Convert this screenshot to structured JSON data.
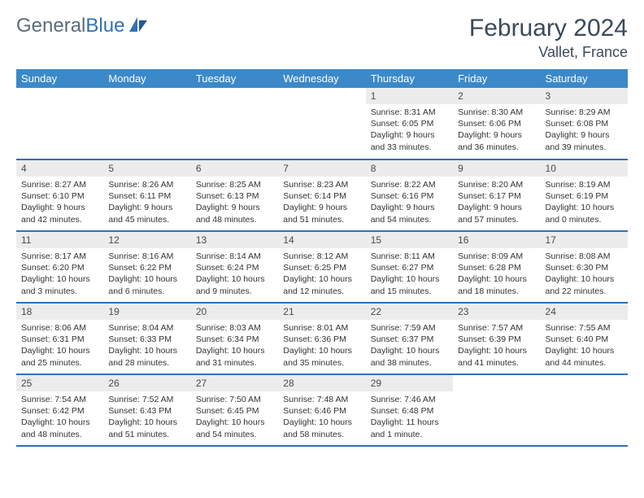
{
  "logo": {
    "text_part1": "General",
    "text_part2": "Blue"
  },
  "title": "February 2024",
  "location": "Vallet, France",
  "colors": {
    "header_bg": "#3b89c9",
    "header_fg": "#ffffff",
    "rule": "#2f71b8",
    "daynum_bg": "#ececec",
    "text": "#333333",
    "title_color": "#3a4a5a"
  },
  "weekdays": [
    "Sunday",
    "Monday",
    "Tuesday",
    "Wednesday",
    "Thursday",
    "Friday",
    "Saturday"
  ],
  "weeks": [
    [
      null,
      null,
      null,
      null,
      {
        "n": "1",
        "sunrise": "8:31 AM",
        "sunset": "6:05 PM",
        "daylight": "9 hours and 33 minutes."
      },
      {
        "n": "2",
        "sunrise": "8:30 AM",
        "sunset": "6:06 PM",
        "daylight": "9 hours and 36 minutes."
      },
      {
        "n": "3",
        "sunrise": "8:29 AM",
        "sunset": "6:08 PM",
        "daylight": "9 hours and 39 minutes."
      }
    ],
    [
      {
        "n": "4",
        "sunrise": "8:27 AM",
        "sunset": "6:10 PM",
        "daylight": "9 hours and 42 minutes."
      },
      {
        "n": "5",
        "sunrise": "8:26 AM",
        "sunset": "6:11 PM",
        "daylight": "9 hours and 45 minutes."
      },
      {
        "n": "6",
        "sunrise": "8:25 AM",
        "sunset": "6:13 PM",
        "daylight": "9 hours and 48 minutes."
      },
      {
        "n": "7",
        "sunrise": "8:23 AM",
        "sunset": "6:14 PM",
        "daylight": "9 hours and 51 minutes."
      },
      {
        "n": "8",
        "sunrise": "8:22 AM",
        "sunset": "6:16 PM",
        "daylight": "9 hours and 54 minutes."
      },
      {
        "n": "9",
        "sunrise": "8:20 AM",
        "sunset": "6:17 PM",
        "daylight": "9 hours and 57 minutes."
      },
      {
        "n": "10",
        "sunrise": "8:19 AM",
        "sunset": "6:19 PM",
        "daylight": "10 hours and 0 minutes."
      }
    ],
    [
      {
        "n": "11",
        "sunrise": "8:17 AM",
        "sunset": "6:20 PM",
        "daylight": "10 hours and 3 minutes."
      },
      {
        "n": "12",
        "sunrise": "8:16 AM",
        "sunset": "6:22 PM",
        "daylight": "10 hours and 6 minutes."
      },
      {
        "n": "13",
        "sunrise": "8:14 AM",
        "sunset": "6:24 PM",
        "daylight": "10 hours and 9 minutes."
      },
      {
        "n": "14",
        "sunrise": "8:12 AM",
        "sunset": "6:25 PM",
        "daylight": "10 hours and 12 minutes."
      },
      {
        "n": "15",
        "sunrise": "8:11 AM",
        "sunset": "6:27 PM",
        "daylight": "10 hours and 15 minutes."
      },
      {
        "n": "16",
        "sunrise": "8:09 AM",
        "sunset": "6:28 PM",
        "daylight": "10 hours and 18 minutes."
      },
      {
        "n": "17",
        "sunrise": "8:08 AM",
        "sunset": "6:30 PM",
        "daylight": "10 hours and 22 minutes."
      }
    ],
    [
      {
        "n": "18",
        "sunrise": "8:06 AM",
        "sunset": "6:31 PM",
        "daylight": "10 hours and 25 minutes."
      },
      {
        "n": "19",
        "sunrise": "8:04 AM",
        "sunset": "6:33 PM",
        "daylight": "10 hours and 28 minutes."
      },
      {
        "n": "20",
        "sunrise": "8:03 AM",
        "sunset": "6:34 PM",
        "daylight": "10 hours and 31 minutes."
      },
      {
        "n": "21",
        "sunrise": "8:01 AM",
        "sunset": "6:36 PM",
        "daylight": "10 hours and 35 minutes."
      },
      {
        "n": "22",
        "sunrise": "7:59 AM",
        "sunset": "6:37 PM",
        "daylight": "10 hours and 38 minutes."
      },
      {
        "n": "23",
        "sunrise": "7:57 AM",
        "sunset": "6:39 PM",
        "daylight": "10 hours and 41 minutes."
      },
      {
        "n": "24",
        "sunrise": "7:55 AM",
        "sunset": "6:40 PM",
        "daylight": "10 hours and 44 minutes."
      }
    ],
    [
      {
        "n": "25",
        "sunrise": "7:54 AM",
        "sunset": "6:42 PM",
        "daylight": "10 hours and 48 minutes."
      },
      {
        "n": "26",
        "sunrise": "7:52 AM",
        "sunset": "6:43 PM",
        "daylight": "10 hours and 51 minutes."
      },
      {
        "n": "27",
        "sunrise": "7:50 AM",
        "sunset": "6:45 PM",
        "daylight": "10 hours and 54 minutes."
      },
      {
        "n": "28",
        "sunrise": "7:48 AM",
        "sunset": "6:46 PM",
        "daylight": "10 hours and 58 minutes."
      },
      {
        "n": "29",
        "sunrise": "7:46 AM",
        "sunset": "6:48 PM",
        "daylight": "11 hours and 1 minute."
      },
      null,
      null
    ]
  ],
  "labels": {
    "sunrise_prefix": "Sunrise: ",
    "sunset_prefix": "Sunset: ",
    "daylight_prefix": "Daylight: "
  }
}
